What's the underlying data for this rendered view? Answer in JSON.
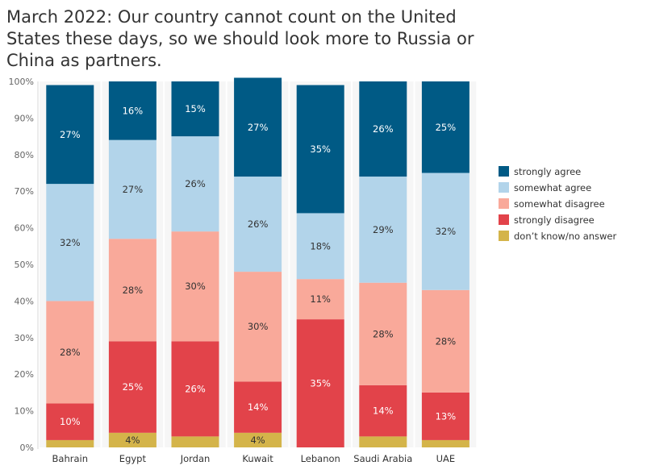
{
  "chart_data": {
    "type": "bar",
    "stacked": true,
    "title": "March 2022: Our country cannot count on the United States these days, so we should look more to Russia or China as partners.",
    "categories": [
      "Bahrain",
      "Egypt",
      "Jordan",
      "Kuwait",
      "Lebanon",
      "Saudi Arabia",
      "UAE"
    ],
    "series": [
      {
        "name": "don’t know/no answer",
        "color": "#d4b44a",
        "values": [
          2,
          4,
          3,
          4,
          0,
          3,
          2
        ],
        "labels": [
          "",
          "4%",
          "",
          "4%",
          "",
          "",
          ""
        ]
      },
      {
        "name": "strongly disagree",
        "color": "#e2434a",
        "values": [
          10,
          25,
          26,
          14,
          35,
          14,
          13
        ],
        "labels": [
          "10%",
          "25%",
          "26%",
          "14%",
          "35%",
          "14%",
          "13%"
        ]
      },
      {
        "name": "somewhat disagree",
        "color": "#f9a99a",
        "values": [
          28,
          28,
          30,
          30,
          11,
          28,
          28
        ],
        "labels": [
          "28%",
          "28%",
          "30%",
          "30%",
          "11%",
          "28%",
          "28%"
        ]
      },
      {
        "name": "somewhat agree",
        "color": "#b2d4ea",
        "values": [
          32,
          27,
          26,
          26,
          18,
          29,
          32
        ],
        "labels": [
          "32%",
          "27%",
          "26%",
          "26%",
          "18%",
          "29%",
          "32%"
        ]
      },
      {
        "name": "strongly agree",
        "color": "#005a85",
        "values": [
          27,
          16,
          15,
          27,
          35,
          26,
          25
        ],
        "labels": [
          "27%",
          "16%",
          "15%",
          "27%",
          "35%",
          "26%",
          "25%"
        ]
      }
    ],
    "legend_order": [
      "strongly agree",
      "somewhat agree",
      "somewhat disagree",
      "strongly disagree",
      "don’t know/no answer"
    ],
    "ylim": [
      0,
      100
    ],
    "yticks": [
      "0%",
      "10%",
      "20%",
      "30%",
      "40%",
      "50%",
      "60%",
      "70%",
      "80%",
      "90%",
      "100%"
    ],
    "grid": false,
    "legend_position": "right"
  }
}
